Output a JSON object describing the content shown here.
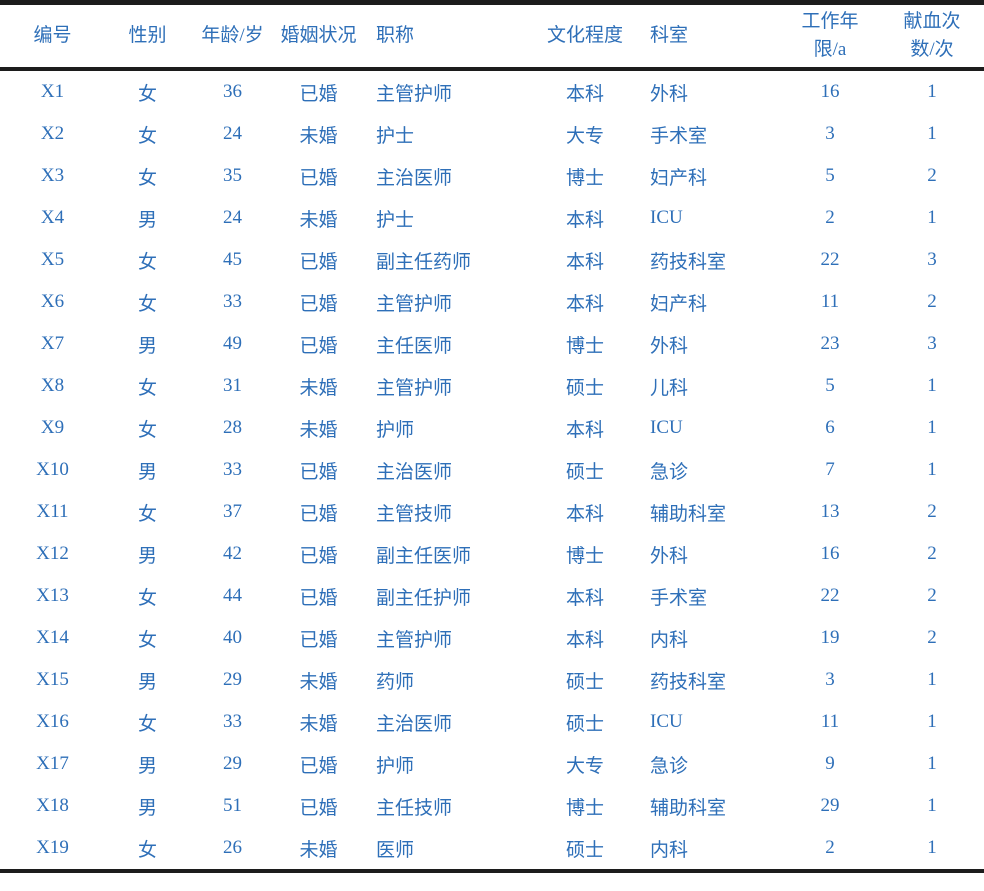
{
  "table": {
    "accent_color": "#2e6fb8",
    "border_color": "#1c1c1c",
    "columns": [
      {
        "label": "编号",
        "align": "center"
      },
      {
        "label": "性别",
        "align": "center"
      },
      {
        "label": "年龄/岁",
        "align": "center"
      },
      {
        "label": "婚姻状况",
        "align": "center"
      },
      {
        "label": "职称",
        "align": "left"
      },
      {
        "label": "文化程度",
        "align": "center"
      },
      {
        "label": "科室",
        "align": "left"
      },
      {
        "label": "工作年限/a",
        "align": "center"
      },
      {
        "label": "献血次数/次",
        "align": "center"
      }
    ],
    "rows": [
      [
        "X1",
        "女",
        "36",
        "已婚",
        "主管护师",
        "本科",
        "外科",
        "16",
        "1"
      ],
      [
        "X2",
        "女",
        "24",
        "未婚",
        "护士",
        "大专",
        "手术室",
        "3",
        "1"
      ],
      [
        "X3",
        "女",
        "35",
        "已婚",
        "主治医师",
        "博士",
        "妇产科",
        "5",
        "2"
      ],
      [
        "X4",
        "男",
        "24",
        "未婚",
        "护士",
        "本科",
        "ICU",
        "2",
        "1"
      ],
      [
        "X5",
        "女",
        "45",
        "已婚",
        "副主任药师",
        "本科",
        "药技科室",
        "22",
        "3"
      ],
      [
        "X6",
        "女",
        "33",
        "已婚",
        "主管护师",
        "本科",
        "妇产科",
        "11",
        "2"
      ],
      [
        "X7",
        "男",
        "49",
        "已婚",
        "主任医师",
        "博士",
        "外科",
        "23",
        "3"
      ],
      [
        "X8",
        "女",
        "31",
        "未婚",
        "主管护师",
        "硕士",
        "儿科",
        "5",
        "1"
      ],
      [
        "X9",
        "女",
        "28",
        "未婚",
        "护师",
        "本科",
        "ICU",
        "6",
        "1"
      ],
      [
        "X10",
        "男",
        "33",
        "已婚",
        "主治医师",
        "硕士",
        "急诊",
        "7",
        "1"
      ],
      [
        "X11",
        "女",
        "37",
        "已婚",
        "主管技师",
        "本科",
        "辅助科室",
        "13",
        "2"
      ],
      [
        "X12",
        "男",
        "42",
        "已婚",
        "副主任医师",
        "博士",
        "外科",
        "16",
        "2"
      ],
      [
        "X13",
        "女",
        "44",
        "已婚",
        "副主任护师",
        "本科",
        "手术室",
        "22",
        "2"
      ],
      [
        "X14",
        "女",
        "40",
        "已婚",
        "主管护师",
        "本科",
        "内科",
        "19",
        "2"
      ],
      [
        "X15",
        "男",
        "29",
        "未婚",
        "药师",
        "硕士",
        "药技科室",
        "3",
        "1"
      ],
      [
        "X16",
        "女",
        "33",
        "未婚",
        "主治医师",
        "硕士",
        "ICU",
        "11",
        "1"
      ],
      [
        "X17",
        "男",
        "29",
        "已婚",
        "护师",
        "大专",
        "急诊",
        "9",
        "1"
      ],
      [
        "X18",
        "男",
        "51",
        "已婚",
        "主任技师",
        "博士",
        "辅助科室",
        "29",
        "1"
      ],
      [
        "X19",
        "女",
        "26",
        "未婚",
        "医师",
        "硕士",
        "内科",
        "2",
        "1"
      ]
    ]
  }
}
